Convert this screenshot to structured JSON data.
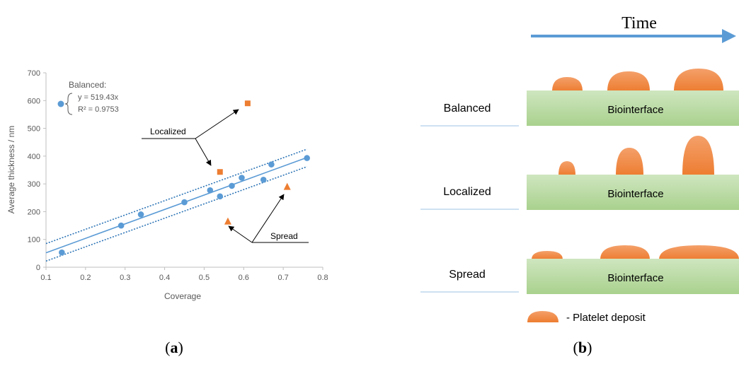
{
  "chart_data": {
    "type": "scatter",
    "xlabel": "Coverage",
    "ylabel": "Average thickness / nm",
    "xlim": [
      0.1,
      0.8
    ],
    "ylim": [
      0,
      700
    ],
    "x_ticks": [
      "0.1",
      "0.2",
      "0.3",
      "0.4",
      "0.5",
      "0.6",
      "0.7",
      "0.8"
    ],
    "y_ticks": [
      "0",
      "100",
      "200",
      "300",
      "400",
      "500",
      "600",
      "700"
    ],
    "series": [
      {
        "name": "Balanced",
        "marker": "circle",
        "color": "#5B9BD5",
        "x": [
          0.14,
          0.29,
          0.34,
          0.45,
          0.515,
          0.54,
          0.57,
          0.595,
          0.65,
          0.67,
          0.76
        ],
        "y": [
          53,
          150,
          190,
          234,
          277,
          255,
          293,
          322,
          315,
          370,
          393
        ]
      },
      {
        "name": "Localized",
        "marker": "square",
        "color": "#ED7D31",
        "x": [
          0.54,
          0.61
        ],
        "y": [
          343,
          590
        ]
      },
      {
        "name": "Spread",
        "marker": "triangle",
        "color": "#ED7D31",
        "x": [
          0.56,
          0.71
        ],
        "y": [
          165,
          290
        ]
      }
    ],
    "fit": {
      "equation": "y = 519.43x",
      "r2": "R² = 0.9753",
      "line_from": [
        0.1,
        52
      ],
      "line_to": [
        0.76,
        395
      ],
      "upper_band_from": [
        0.1,
        85
      ],
      "upper_band_to": [
        0.76,
        425
      ],
      "lower_band_from": [
        0.1,
        22
      ],
      "lower_band_to": [
        0.76,
        362
      ]
    },
    "legend": {
      "title": "Balanced:",
      "equation": "y = 519.43x",
      "r2": "R² = 0.9753"
    },
    "annotations": {
      "localized": "Localized",
      "spread": "Spread"
    }
  },
  "diagram": {
    "time_label": "Time",
    "rows": [
      {
        "label": "Balanced",
        "surface": "Biointerface"
      },
      {
        "label": "Localized",
        "surface": "Biointerface"
      },
      {
        "label": "Spread",
        "surface": "Biointerface"
      }
    ],
    "legend_text": "- Platelet deposit"
  },
  "captions": {
    "a": "a",
    "b": "b"
  },
  "colors": {
    "blue": "#5B9BD5",
    "orange": "#ED7D31",
    "green_top": "#C9E3B7",
    "green_bottom": "#A9D18E",
    "arrow_blue": "#5B9BD5"
  }
}
